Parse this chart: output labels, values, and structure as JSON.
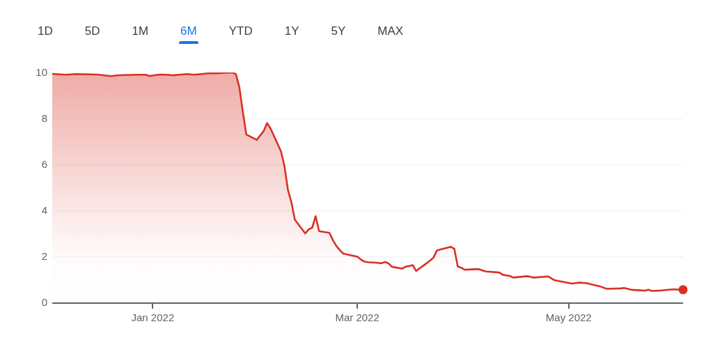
{
  "chart_data": {
    "type": "area",
    "annotations": [
      "1D",
      "5D",
      "1M",
      "6M",
      "YTD",
      "1Y",
      "5Y",
      "MAX"
    ],
    "xlim": [
      "2021-12-03",
      "2022-06-03"
    ],
    "xticks": [
      {
        "value": "2022-01-01",
        "label": "Jan 2022"
      },
      {
        "value": "2022-03-01",
        "label": "Mar 2022"
      },
      {
        "value": "2022-05-01",
        "label": "May 2022"
      }
    ],
    "ylim": [
      0,
      10
    ],
    "yticks": [
      0,
      2,
      4,
      6,
      8,
      10
    ],
    "grid": "y",
    "series": [
      {
        "color": "#d93025",
        "x": [
          "2021-12-03",
          "2021-12-07",
          "2021-12-10",
          "2021-12-16",
          "2021-12-20",
          "2021-12-22",
          "2021-12-27",
          "2021-12-30",
          "2021-12-31",
          "2022-01-03",
          "2022-01-05",
          "2022-01-07",
          "2022-01-11",
          "2022-01-13",
          "2022-01-17",
          "2022-01-19",
          "2022-01-21",
          "2022-01-24",
          "2022-01-25",
          "2022-01-26",
          "2022-01-27",
          "2022-01-28",
          "2022-01-31",
          "2022-02-01",
          "2022-02-02",
          "2022-02-03",
          "2022-02-04",
          "2022-02-07",
          "2022-02-08",
          "2022-02-09",
          "2022-02-10",
          "2022-02-11",
          "2022-02-14",
          "2022-02-15",
          "2022-02-16",
          "2022-02-17",
          "2022-02-18",
          "2022-02-21",
          "2022-02-22",
          "2022-02-23",
          "2022-02-24",
          "2022-02-25",
          "2022-02-28",
          "2022-03-01",
          "2022-03-02",
          "2022-03-03",
          "2022-03-04",
          "2022-03-07",
          "2022-03-08",
          "2022-03-09",
          "2022-03-10",
          "2022-03-11",
          "2022-03-14",
          "2022-03-15",
          "2022-03-16",
          "2022-03-17",
          "2022-03-18",
          "2022-03-21",
          "2022-03-22",
          "2022-03-23",
          "2022-03-24",
          "2022-03-25",
          "2022-03-28",
          "2022-03-29",
          "2022-03-30",
          "2022-03-31",
          "2022-04-01",
          "2022-04-05",
          "2022-04-07",
          "2022-04-11",
          "2022-04-12",
          "2022-04-14",
          "2022-04-15",
          "2022-04-19",
          "2022-04-21",
          "2022-04-25",
          "2022-04-27",
          "2022-05-02",
          "2022-05-04",
          "2022-05-06",
          "2022-05-10",
          "2022-05-12",
          "2022-05-16",
          "2022-05-17",
          "2022-05-19",
          "2022-05-23",
          "2022-05-24",
          "2022-05-25",
          "2022-05-27",
          "2022-05-31",
          "2022-06-03"
        ],
        "values": [
          9.94,
          9.9,
          9.93,
          9.91,
          9.84,
          9.88,
          9.9,
          9.9,
          9.85,
          9.91,
          9.9,
          9.88,
          9.93,
          9.9,
          9.96,
          9.96,
          9.98,
          10.0,
          9.93,
          9.35,
          8.28,
          7.3,
          7.07,
          7.26,
          7.45,
          7.8,
          7.56,
          6.57,
          5.93,
          4.9,
          4.35,
          3.6,
          3.0,
          3.18,
          3.25,
          3.75,
          3.1,
          3.02,
          2.7,
          2.45,
          2.27,
          2.12,
          2.02,
          1.99,
          1.87,
          1.78,
          1.75,
          1.72,
          1.7,
          1.76,
          1.7,
          1.55,
          1.47,
          1.56,
          1.58,
          1.62,
          1.37,
          1.7,
          1.82,
          1.95,
          2.26,
          2.3,
          2.42,
          2.33,
          1.56,
          1.51,
          1.42,
          1.45,
          1.35,
          1.3,
          1.2,
          1.15,
          1.08,
          1.14,
          1.08,
          1.13,
          0.96,
          0.82,
          0.86,
          0.84,
          0.7,
          0.59,
          0.61,
          0.63,
          0.55,
          0.51,
          0.55,
          0.5,
          0.51,
          0.57,
          0.55
        ]
      },
      {
        "type": "scatter",
        "color": "#d93025",
        "x": [
          "2022-06-03"
        ],
        "values": [
          0.55
        ]
      }
    ]
  }
}
